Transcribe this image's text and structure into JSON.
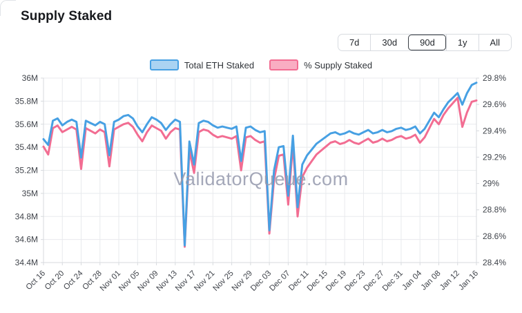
{
  "title": "Supply Staked",
  "range_selector": {
    "options": [
      "7d",
      "30d",
      "90d",
      "1y",
      "All"
    ],
    "selected": "90d"
  },
  "legend": [
    {
      "label": "Total ETH Staked",
      "fill": "#aad3f2",
      "stroke": "#47a0e3"
    },
    {
      "label": "% Supply Staked",
      "fill": "#f9adc2",
      "stroke": "#f26d92"
    }
  ],
  "watermark": "ValidatorQueue.com",
  "colors": {
    "blue_line": "#47a0e3",
    "pink_line": "#f26d92",
    "grid": "#e8eaed",
    "axis_line": "#d7dade",
    "axis_text": "#3f434a",
    "watermark": "#9599ad"
  },
  "chart_data": {
    "type": "line",
    "title": "Supply Staked",
    "grid": true,
    "legend_position": "top",
    "x": [
      "Oct 16",
      "Oct 17",
      "Oct 18",
      "Oct 19",
      "Oct 20",
      "Oct 21",
      "Oct 22",
      "Oct 23",
      "Oct 24",
      "Oct 25",
      "Oct 26",
      "Oct 27",
      "Oct 28",
      "Oct 29",
      "Oct 30",
      "Oct 31",
      "Nov 01",
      "Nov 02",
      "Nov 03",
      "Nov 04",
      "Nov 05",
      "Nov 06",
      "Nov 07",
      "Nov 08",
      "Nov 09",
      "Nov 10",
      "Nov 11",
      "Nov 12",
      "Nov 13",
      "Nov 14",
      "Nov 15",
      "Nov 16",
      "Nov 17",
      "Nov 18",
      "Nov 19",
      "Nov 20",
      "Nov 21",
      "Nov 22",
      "Nov 23",
      "Nov 24",
      "Nov 25",
      "Nov 26",
      "Nov 27",
      "Nov 28",
      "Nov 29",
      "Nov 30",
      "Dec 01",
      "Dec 02",
      "Dec 03",
      "Dec 04",
      "Dec 05",
      "Dec 06",
      "Dec 07",
      "Dec 08",
      "Dec 09",
      "Dec 10",
      "Dec 11",
      "Dec 12",
      "Dec 13",
      "Dec 14",
      "Dec 15",
      "Dec 16",
      "Dec 17",
      "Dec 18",
      "Dec 19",
      "Dec 20",
      "Dec 21",
      "Dec 22",
      "Dec 23",
      "Dec 24",
      "Dec 25",
      "Dec 26",
      "Dec 27",
      "Dec 28",
      "Dec 29",
      "Dec 30",
      "Dec 31",
      "Jan 01",
      "Jan 02",
      "Jan 03",
      "Jan 04",
      "Jan 05",
      "Jan 06",
      "Jan 07",
      "Jan 08",
      "Jan 09",
      "Jan 10",
      "Jan 11",
      "Jan 12",
      "Jan 13",
      "Jan 14",
      "Jan 15",
      "Jan 16"
    ],
    "x_tick_labels": [
      "Oct 16",
      "Oct 20",
      "Oct 24",
      "Oct 28",
      "Nov 01",
      "Nov 05",
      "Nov 09",
      "Nov 13",
      "Nov 17",
      "Nov 21",
      "Nov 25",
      "Nov 29",
      "Dec 03",
      "Dec 07",
      "Dec 11",
      "Dec 15",
      "Dec 19",
      "Dec 23",
      "Dec 27",
      "Dec 31",
      "Jan 04",
      "Jan 08",
      "Jan 12",
      "Jan 16"
    ],
    "x_tick_every": 4,
    "series": [
      {
        "name": "Total ETH Staked",
        "axis": "left",
        "color": "#47a0e3",
        "values": [
          35.47,
          35.42,
          35.63,
          35.65,
          35.59,
          35.62,
          35.64,
          35.62,
          35.31,
          35.63,
          35.61,
          35.59,
          35.62,
          35.6,
          35.33,
          35.62,
          35.64,
          35.67,
          35.68,
          35.65,
          35.58,
          35.53,
          35.6,
          35.66,
          35.64,
          35.61,
          35.55,
          35.6,
          35.64,
          35.62,
          34.55,
          35.45,
          35.25,
          35.61,
          35.63,
          35.62,
          35.59,
          35.57,
          35.58,
          35.57,
          35.56,
          35.58,
          35.28,
          35.57,
          35.58,
          35.55,
          35.53,
          35.54,
          34.68,
          35.2,
          35.4,
          35.41,
          34.98,
          35.5,
          34.88,
          35.25,
          35.33,
          35.38,
          35.43,
          35.46,
          35.49,
          35.52,
          35.53,
          35.51,
          35.52,
          35.54,
          35.52,
          35.51,
          35.53,
          35.55,
          35.52,
          35.53,
          35.55,
          35.53,
          35.54,
          35.56,
          35.57,
          35.55,
          35.56,
          35.58,
          35.52,
          35.56,
          35.63,
          35.7,
          35.66,
          35.73,
          35.79,
          35.83,
          35.87,
          35.77,
          35.87,
          35.94,
          35.96
        ]
      },
      {
        "name": "% Supply Staked",
        "axis": "right",
        "color": "#f26d92",
        "values": [
          29.28,
          29.22,
          29.42,
          29.44,
          29.39,
          29.41,
          29.43,
          29.41,
          29.11,
          29.42,
          29.4,
          29.38,
          29.41,
          29.39,
          29.13,
          29.41,
          29.43,
          29.45,
          29.46,
          29.43,
          29.37,
          29.32,
          29.39,
          29.44,
          29.42,
          29.4,
          29.34,
          29.39,
          29.42,
          29.41,
          28.52,
          29.25,
          29.08,
          29.39,
          29.41,
          29.4,
          29.37,
          29.35,
          29.36,
          29.35,
          29.34,
          29.36,
          29.1,
          29.35,
          29.36,
          29.33,
          29.31,
          29.32,
          28.62,
          29.03,
          29.21,
          29.22,
          28.84,
          29.3,
          28.75,
          29.05,
          29.12,
          29.17,
          29.22,
          29.25,
          29.28,
          29.31,
          29.32,
          29.3,
          29.31,
          29.33,
          29.31,
          29.3,
          29.32,
          29.34,
          29.31,
          29.32,
          29.34,
          29.32,
          29.33,
          29.35,
          29.36,
          29.34,
          29.35,
          29.37,
          29.31,
          29.35,
          29.42,
          29.49,
          29.45,
          29.52,
          29.57,
          29.61,
          29.65,
          29.43,
          29.54,
          29.62,
          29.63
        ]
      }
    ],
    "left_axis": {
      "labels": [
        "36M",
        "35.8M",
        "35.6M",
        "35.4M",
        "35.2M",
        "35M",
        "34.8M",
        "34.6M",
        "34.4M"
      ],
      "min": 34.4,
      "max": 36.0
    },
    "right_axis": {
      "labels": [
        "29.8%",
        "29.6%",
        "29.4%",
        "29.2%",
        "29%",
        "28.8%",
        "28.6%",
        "28.4%"
      ],
      "min": 28.4,
      "max": 29.8
    }
  }
}
